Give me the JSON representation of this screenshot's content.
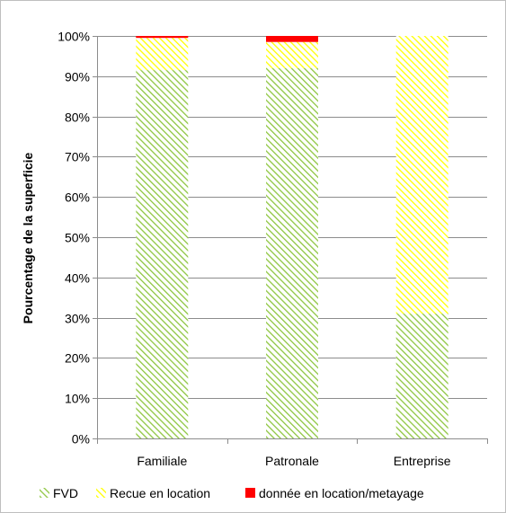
{
  "chart_data": {
    "type": "bar",
    "stacked": true,
    "percent": true,
    "title": "",
    "xlabel": "",
    "ylabel": "Pourcentage de la superficie",
    "ylim": [
      0,
      100
    ],
    "y_ticks": [
      "0%",
      "10%",
      "20%",
      "30%",
      "40%",
      "50%",
      "60%",
      "70%",
      "80%",
      "90%",
      "100%"
    ],
    "categories": [
      "Familiale",
      "Patronale",
      "Entreprise"
    ],
    "series": [
      {
        "name": "FVD",
        "values": [
          91.5,
          92,
          31
        ],
        "color": "#8ec63f",
        "pattern": "diagonal-hatch"
      },
      {
        "name": "Recue en location",
        "values": [
          8,
          6.5,
          69
        ],
        "color": "#ffff00",
        "pattern": "diagonal-hatch"
      },
      {
        "name": "donnée en location/metayage",
        "values": [
          0.5,
          1.5,
          0
        ],
        "color": "#ff0000",
        "pattern": "solid"
      }
    ],
    "grid": true,
    "legend": "bottom"
  }
}
